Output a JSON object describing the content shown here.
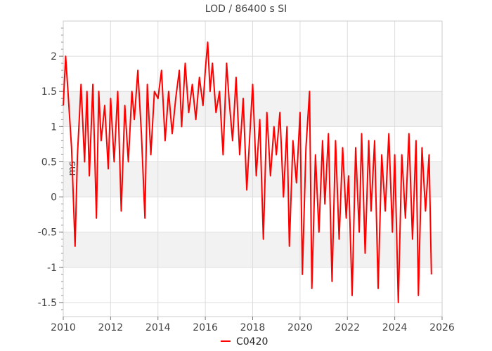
{
  "chart_data": {
    "type": "line",
    "title": "LOD / 86400 s SI",
    "xlabel": "",
    "ylabel": "ms",
    "xlim": [
      2010,
      2026
    ],
    "ylim": [
      -1.7,
      2.5
    ],
    "x_ticks": [
      "2010",
      "2012",
      "2014",
      "2016",
      "2018",
      "2020",
      "2022",
      "2024",
      "2026"
    ],
    "y_ticks": [
      "-1.5",
      "-1",
      "-0.5",
      "0",
      "0.5",
      "1",
      "1.5",
      "2"
    ],
    "grid": true,
    "legend_position": "bottom-center",
    "series": [
      {
        "name": "C0420",
        "color": "#ff0000",
        "x": [
          2010.0,
          2010.1,
          2010.2,
          2010.35,
          2010.5,
          2010.6,
          2010.75,
          2010.9,
          2011.0,
          2011.1,
          2011.25,
          2011.4,
          2011.5,
          2011.6,
          2011.75,
          2011.9,
          2012.0,
          2012.15,
          2012.3,
          2012.45,
          2012.6,
          2012.75,
          2012.9,
          2013.0,
          2013.15,
          2013.3,
          2013.45,
          2013.55,
          2013.7,
          2013.85,
          2014.0,
          2014.15,
          2014.3,
          2014.45,
          2014.6,
          2014.75,
          2014.9,
          2015.0,
          2015.15,
          2015.3,
          2015.45,
          2015.6,
          2015.75,
          2015.9,
          2016.0,
          2016.1,
          2016.2,
          2016.3,
          2016.45,
          2016.6,
          2016.75,
          2016.9,
          2017.0,
          2017.15,
          2017.3,
          2017.45,
          2017.6,
          2017.75,
          2017.9,
          2018.0,
          2018.15,
          2018.3,
          2018.45,
          2018.6,
          2018.75,
          2018.9,
          2019.0,
          2019.15,
          2019.3,
          2019.45,
          2019.55,
          2019.7,
          2019.85,
          2020.0,
          2020.1,
          2020.25,
          2020.4,
          2020.5,
          2020.65,
          2020.8,
          2020.95,
          2021.05,
          2021.2,
          2021.35,
          2021.5,
          2021.65,
          2021.8,
          2021.95,
          2022.05,
          2022.2,
          2022.35,
          2022.5,
          2022.6,
          2022.75,
          2022.9,
          2023.0,
          2023.15,
          2023.3,
          2023.45,
          2023.6,
          2023.75,
          2023.9,
          2024.0,
          2024.15,
          2024.3,
          2024.45,
          2024.6,
          2024.75,
          2024.9,
          2025.0,
          2025.15,
          2025.3,
          2025.45,
          2025.55
        ],
        "y": [
          1.3,
          2.0,
          1.5,
          0.7,
          -0.7,
          0.6,
          1.6,
          0.5,
          1.5,
          0.3,
          1.6,
          -0.3,
          1.5,
          0.8,
          1.3,
          0.4,
          1.4,
          0.5,
          1.5,
          -0.2,
          1.3,
          0.5,
          1.5,
          1.1,
          1.8,
          0.9,
          -0.3,
          1.6,
          0.6,
          1.5,
          1.4,
          1.8,
          0.8,
          1.5,
          0.9,
          1.4,
          1.8,
          1.0,
          1.9,
          1.2,
          1.6,
          1.1,
          1.7,
          1.3,
          1.8,
          2.2,
          1.5,
          1.9,
          1.2,
          1.5,
          0.6,
          1.9,
          1.4,
          0.8,
          1.7,
          0.6,
          1.4,
          0.1,
          1.0,
          1.6,
          0.3,
          1.1,
          -0.6,
          1.2,
          0.3,
          1.0,
          0.6,
          1.2,
          0.0,
          1.0,
          -0.7,
          0.8,
          0.2,
          1.2,
          -1.1,
          0.7,
          1.5,
          -1.3,
          0.6,
          -0.5,
          0.8,
          -0.1,
          0.9,
          -1.2,
          0.8,
          -0.6,
          0.7,
          -0.3,
          0.3,
          -1.4,
          0.7,
          -0.5,
          0.9,
          -0.8,
          0.8,
          -0.2,
          0.8,
          -1.3,
          0.6,
          -0.2,
          0.9,
          -0.5,
          0.6,
          -1.5,
          0.6,
          -0.3,
          0.9,
          -0.6,
          0.8,
          -1.4,
          0.7,
          -0.2,
          0.6,
          -1.1
        ]
      }
    ]
  }
}
